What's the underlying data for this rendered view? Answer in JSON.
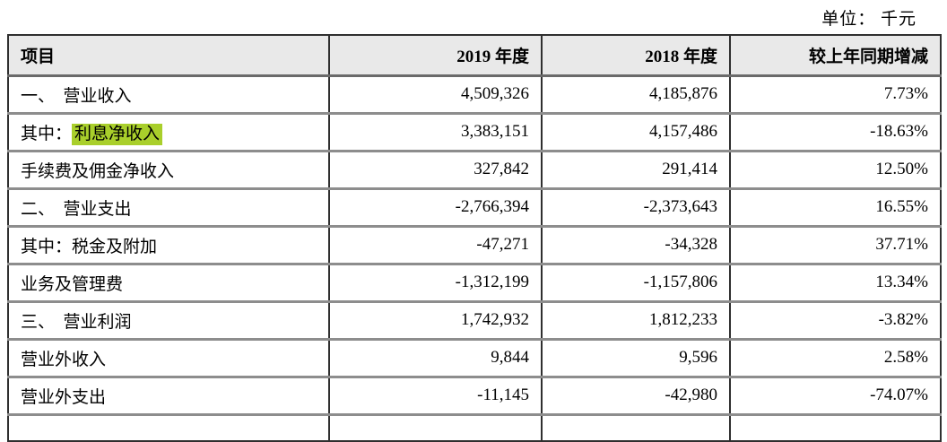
{
  "unit_label": "单位： 千元",
  "colors": {
    "highlight": "#a9cf2b",
    "header_bg": "#e9e9e9",
    "grid_dark": "#2f2f2f",
    "grid_gray": "#8d8d8d"
  },
  "table": {
    "headers": [
      "项目",
      "2019 年度",
      "2018 年度",
      "较上年同期增减"
    ],
    "rows": [
      {
        "prefix": "",
        "item": "一、　营业收入",
        "highlighted": false,
        "values": [
          "4,509,326",
          "4,185,876",
          "7.73%"
        ]
      },
      {
        "prefix": "其中：",
        "item": "利息净收入",
        "highlighted": true,
        "values": [
          "3,383,151",
          "4,157,486",
          "-18.63%"
        ]
      },
      {
        "prefix": "",
        "item": "手续费及佣金净收入",
        "highlighted": false,
        "values": [
          "327,842",
          "291,414",
          "12.50%"
        ]
      },
      {
        "prefix": "",
        "item": "二、　营业支出",
        "highlighted": false,
        "values": [
          "-2,766,394",
          "-2,373,643",
          "16.55%"
        ]
      },
      {
        "prefix": "",
        "item": "其中：税金及附加",
        "highlighted": false,
        "values": [
          "-47,271",
          "-34,328",
          "37.71%"
        ]
      },
      {
        "prefix": "",
        "item": "业务及管理费",
        "highlighted": false,
        "values": [
          "-1,312,199",
          "-1,157,806",
          "13.34%"
        ]
      },
      {
        "prefix": "",
        "item": "三、　营业利润",
        "highlighted": false,
        "values": [
          "1,742,932",
          "1,812,233",
          "-3.82%"
        ]
      },
      {
        "prefix": "",
        "item": "营业外收入",
        "highlighted": false,
        "values": [
          "9,844",
          "9,596",
          "2.58%"
        ]
      },
      {
        "prefix": "",
        "item": "营业外支出",
        "highlighted": false,
        "values": [
          "-11,145",
          "-42,980",
          "-74.07%"
        ]
      }
    ]
  }
}
